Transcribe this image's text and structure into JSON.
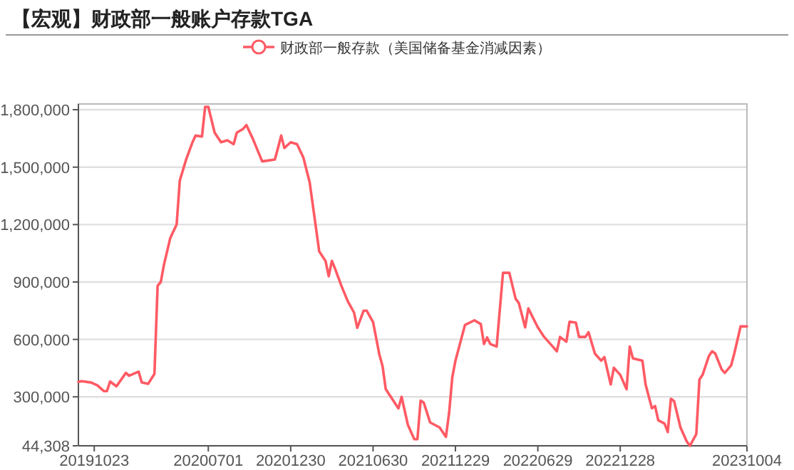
{
  "chart_data": {
    "type": "line",
    "title": "【宏观】财政部一般账户存款TGA",
    "legend": "top",
    "grid": "y",
    "xlim": [
      "2019-09-18",
      "2023-10-04"
    ],
    "xticks": [
      {
        "value": "2019-10-23",
        "label": "20191023"
      },
      {
        "value": "2020-07-01",
        "label": "20200701"
      },
      {
        "value": "2020-12-30",
        "label": "20201230"
      },
      {
        "value": "2021-06-30",
        "label": "20210630"
      },
      {
        "value": "2021-12-29",
        "label": "20211229"
      },
      {
        "value": "2022-06-29",
        "label": "20220629"
      },
      {
        "value": "2022-12-28",
        "label": "20221228"
      },
      {
        "value": "2023-10-04",
        "label": "20231004"
      }
    ],
    "ylim": [
      44308,
      1830000
    ],
    "yticks": [
      {
        "value": 44308,
        "label": "44,308"
      },
      {
        "value": 300000,
        "label": "300,000"
      },
      {
        "value": 600000,
        "label": "600,000"
      },
      {
        "value": 900000,
        "label": "900,000"
      },
      {
        "value": 1200000,
        "label": "1,200,000"
      },
      {
        "value": 1500000,
        "label": "1,500,000"
      },
      {
        "value": 1800000,
        "label": "1,800,000"
      }
    ],
    "x": [
      "2019-09-18",
      "2019-09-25",
      "2019-10-16",
      "2019-10-30",
      "2019-11-13",
      "2019-11-20",
      "2019-11-27",
      "2019-12-11",
      "2020-01-01",
      "2020-01-08",
      "2020-01-29",
      "2020-02-05",
      "2020-02-19",
      "2020-03-04",
      "2020-03-11",
      "2020-03-18",
      "2020-03-25",
      "2020-04-08",
      "2020-04-22",
      "2020-04-29",
      "2020-05-13",
      "2020-05-27",
      "2020-06-03",
      "2020-06-17",
      "2020-06-24",
      "2020-07-01",
      "2020-07-15",
      "2020-07-29",
      "2020-08-12",
      "2020-08-26",
      "2020-09-02",
      "2020-09-16",
      "2020-09-23",
      "2020-10-07",
      "2020-10-14",
      "2020-10-28",
      "2020-11-25",
      "2020-12-02",
      "2020-12-09",
      "2020-12-16",
      "2020-12-30",
      "2021-01-13",
      "2021-01-27",
      "2021-02-10",
      "2021-02-17",
      "2021-03-03",
      "2021-03-17",
      "2021-03-24",
      "2021-03-31",
      "2021-04-07",
      "2021-04-21",
      "2021-05-05",
      "2021-05-19",
      "2021-05-26",
      "2021-06-09",
      "2021-06-16",
      "2021-06-30",
      "2021-07-14",
      "2021-07-21",
      "2021-07-28",
      "2021-08-04",
      "2021-08-25",
      "2021-09-01",
      "2021-09-15",
      "2021-09-29",
      "2021-10-06",
      "2021-10-13",
      "2021-10-20",
      "2021-11-03",
      "2021-11-24",
      "2021-12-08",
      "2021-12-15",
      "2021-12-22",
      "2021-12-29",
      "2022-01-12",
      "2022-01-19",
      "2022-02-09",
      "2022-02-23",
      "2022-03-02",
      "2022-03-09",
      "2022-03-16",
      "2022-03-30",
      "2022-04-13",
      "2022-04-27",
      "2022-05-11",
      "2022-05-18",
      "2022-06-01",
      "2022-06-08",
      "2022-06-29",
      "2022-07-13",
      "2022-07-27",
      "2022-08-10",
      "2022-08-17",
      "2022-08-31",
      "2022-09-07",
      "2022-09-21",
      "2022-09-28",
      "2022-10-12",
      "2022-10-19",
      "2022-11-02",
      "2022-11-16",
      "2022-11-23",
      "2022-12-07",
      "2022-12-14",
      "2022-12-28",
      "2023-01-11",
      "2023-01-18",
      "2023-01-25",
      "2023-02-15",
      "2023-02-22",
      "2023-03-08",
      "2023-03-15",
      "2023-03-22",
      "2023-04-05",
      "2023-04-12",
      "2023-04-19",
      "2023-04-26",
      "2023-05-10",
      "2023-05-24",
      "2023-05-31",
      "2023-06-14",
      "2023-06-21",
      "2023-06-28",
      "2023-07-12",
      "2023-07-19",
      "2023-07-26",
      "2023-08-09",
      "2023-08-16",
      "2023-08-30",
      "2023-09-06",
      "2023-09-20",
      "2023-10-04"
    ],
    "series": [
      {
        "name": "财政部一般存款（美国储备基金消减因素）",
        "color": "#ff5a64",
        "values": [
          378000,
          382000,
          375000,
          360000,
          330000,
          330000,
          380000,
          355000,
          425000,
          410000,
          432000,
          375000,
          368000,
          420000,
          880000,
          900000,
          990000,
          1130000,
          1200000,
          1430000,
          1540000,
          1630000,
          1665000,
          1660000,
          1815000,
          1815000,
          1680000,
          1630000,
          1640000,
          1620000,
          1680000,
          1700000,
          1720000,
          1650000,
          1610000,
          1530000,
          1540000,
          1600000,
          1665000,
          1600000,
          1630000,
          1620000,
          1550000,
          1420000,
          1300000,
          1060000,
          1010000,
          930000,
          1010000,
          970000,
          880000,
          800000,
          740000,
          660000,
          750000,
          750000,
          690000,
          520000,
          460000,
          340000,
          315000,
          240000,
          300000,
          153000,
          79000,
          79000,
          280000,
          270000,
          166000,
          140000,
          91000,
          216000,
          402000,
          489000,
          613000,
          675000,
          700000,
          680000,
          576000,
          610000,
          576000,
          563000,
          948000,
          948000,
          812000,
          790000,
          663000,
          762000,
          663000,
          613000,
          576000,
          538000,
          613000,
          588000,
          692000,
          688000,
          613000,
          613000,
          638000,
          526000,
          489000,
          508000,
          365000,
          452000,
          415000,
          340000,
          563000,
          501000,
          489000,
          365000,
          240000,
          252000,
          178000,
          160000,
          116000,
          290000,
          278000,
          141000,
          67000,
          44308,
          105000,
          390000,
          415000,
          514000,
          538000,
          526000,
          444000,
          425000,
          464000,
          526000,
          668000,
          668000
        ]
      }
    ]
  }
}
